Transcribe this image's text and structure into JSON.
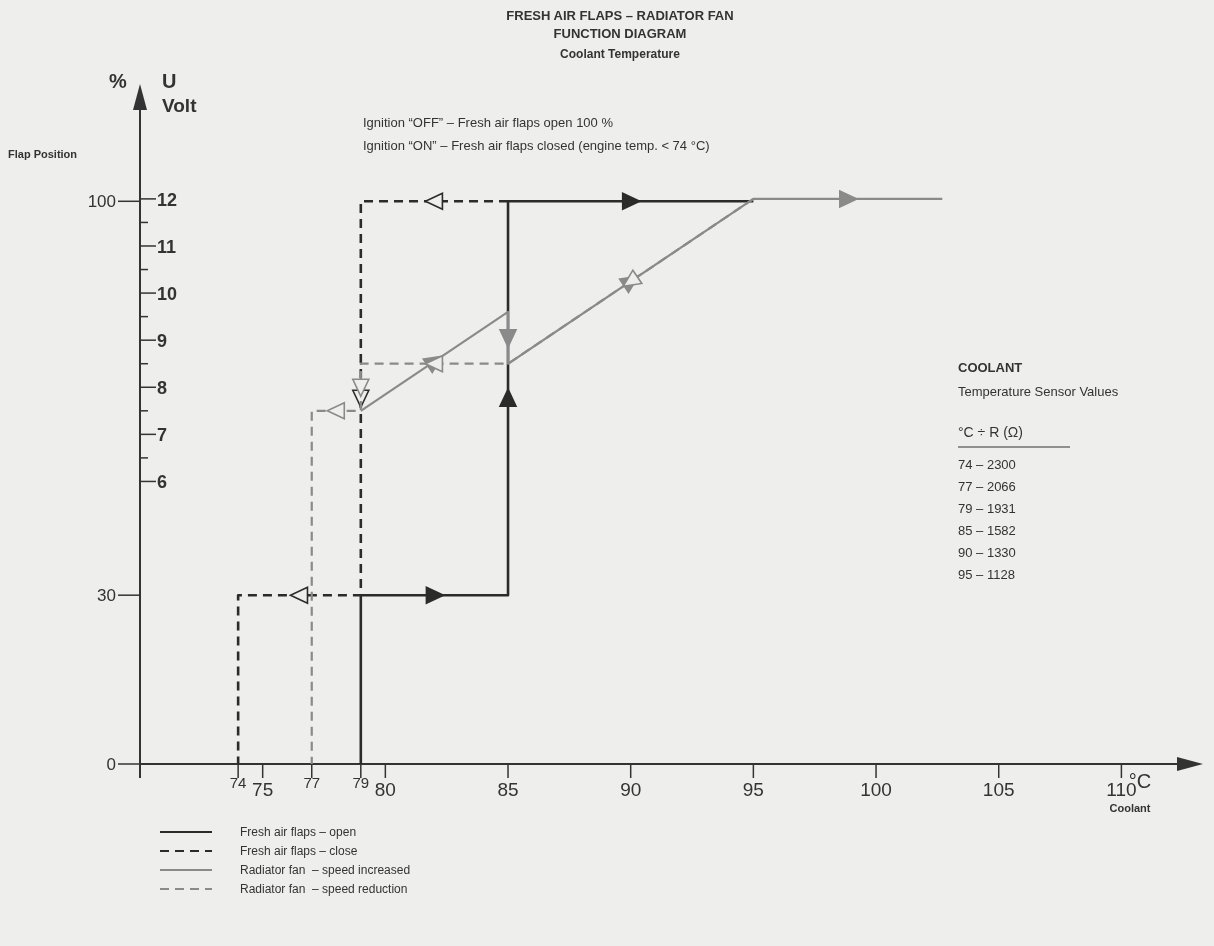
{
  "chart_data": {
    "type": "line",
    "title": "FRESH AIR FLAPS – RADIATOR FAN",
    "subtitle": "FUNCTION DIAGRAM",
    "xlabel": "°C",
    "ylabel": "%",
    "y2label": "U Volt",
    "annotations": [
      "Coolant Temperature",
      "Ignition “OFF” – Fresh air flaps open 100 %",
      "Ignition “ON”  – Fresh air flaps closed (engine temp. < 74 °C)",
      "COOLANT",
      "Temperature Sensor Values",
      "°C ÷ R (Ω)",
      "74 – 2300",
      "77 – 2066",
      "79 – 1931",
      "85 – 1582",
      "90 – 1330",
      "95 – 1128",
      "Coolant",
      "Flap Position"
    ],
    "xlim": [
      70,
      113
    ],
    "xticks": [
      74,
      75,
      77,
      79,
      80,
      85,
      90,
      95,
      100,
      105,
      110
    ],
    "ylim": [
      0,
      118
    ],
    "yticks": [
      0,
      30,
      100
    ],
    "y2lim": [
      0,
      14.1
    ],
    "y2ticks": [
      6,
      {
        "value": 6.5,
        "label": null
      },
      7,
      {
        "value": 7.5,
        "label": null
      },
      8,
      {
        "value": 8.5,
        "label": null
      },
      9,
      {
        "value": 9.5,
        "label": null
      },
      10,
      {
        "value": 10.5,
        "label": null
      },
      11,
      {
        "value": 11.5,
        "label": null
      },
      12
    ],
    "grid": false,
    "legend": "bottom left",
    "marker": "none",
    "series": [
      {
        "name": "Fresh air flaps – open",
        "color": "#2b2b2b",
        "line_style": "solid",
        "x": [
          79,
          79,
          85,
          85,
          95
        ],
        "values": [
          0,
          30,
          30,
          100,
          100
        ]
      },
      {
        "name": "Fresh air flaps – close",
        "color": "#2b2b2b",
        "line_style": "dashed",
        "x": [
          85,
          79,
          79,
          74,
          74
        ],
        "values": [
          100,
          100,
          30,
          30,
          0
        ]
      },
      {
        "name": "Radiator fan  – speed increased",
        "color": "#8a8a8a",
        "line_style": "solid",
        "axis": "y2",
        "x": [
          79,
          85,
          85,
          95,
          102.7
        ],
        "values": [
          7.5,
          9.6,
          8.5,
          12,
          12
        ]
      },
      {
        "name": "Radiator fan  – speed reduction",
        "color": "#8a8a8a",
        "line_style": "dashed",
        "axis": "y2",
        "x": [
          95,
          85,
          79,
          79,
          77,
          77
        ],
        "values": [
          12,
          8.5,
          8.5,
          7.5,
          7.5,
          0
        ]
      }
    ]
  }
}
